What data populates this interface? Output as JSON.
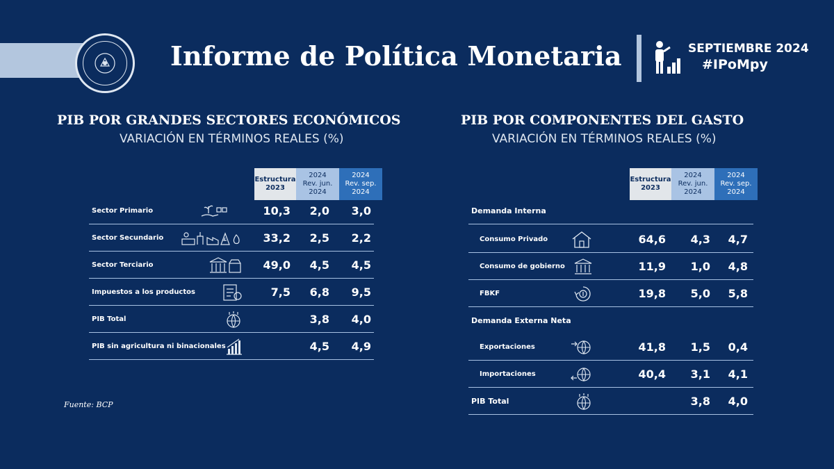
{
  "header": {
    "title": "Informe de Política Monetaria",
    "date": "SEPTIEMBRE 2024",
    "hashtag": "#IPoMpy",
    "logo_icon": "bcp-seal-icon",
    "person_icon": "person-chart-icon"
  },
  "left": {
    "title": "PIB POR GRANDES SECTORES ECONÓMICOS",
    "subtitle": "VARIACIÓN EN TÉRMINOS REALES (%)",
    "columns": [
      {
        "line1": "Estructura",
        "line2": "2023",
        "line3": ""
      },
      {
        "line1": "2024",
        "line2": "Rev. jun.",
        "line3": "2024"
      },
      {
        "line1": "2024",
        "line2": "Rev. sep.",
        "line3": "2024"
      }
    ],
    "rows": [
      {
        "label": "Sector Primario",
        "icon": "plant-hand-icon",
        "v1": "10,3",
        "v2": "2,0",
        "v3": "3,0"
      },
      {
        "label": "Sector Secundario",
        "icon": "industry-icon",
        "v1": "33,2",
        "v2": "2,5",
        "v3": "2,2"
      },
      {
        "label": "Sector Terciario",
        "icon": "bank-store-icon",
        "v1": "49,0",
        "v2": "4,5",
        "v3": "4,5"
      },
      {
        "label": "Impuestos a los productos",
        "icon": "tax-document-icon",
        "v1": "7,5",
        "v2": "6,8",
        "v3": "9,5"
      },
      {
        "label": "PIB Total",
        "icon": "globe-growth-icon",
        "v1": "",
        "v2": "3,8",
        "v3": "4,0"
      },
      {
        "label": "PIB sin agricultura ni binacionales",
        "icon": "bar-chart-icon",
        "v1": "",
        "v2": "4,5",
        "v3": "4,9"
      }
    ],
    "source": "Fuente: BCP"
  },
  "right": {
    "title": "PIB POR COMPONENTES DEL GASTO",
    "subtitle": "VARIACIÓN EN TÉRMINOS REALES (%)",
    "columns": [
      {
        "line1": "Estructura",
        "line2": "2023",
        "line3": ""
      },
      {
        "line1": "2024",
        "line2": "Rev. jun.",
        "line3": "2024"
      },
      {
        "line1": "2024",
        "line2": "Rev. sep.",
        "line3": "2024"
      }
    ],
    "group1": "Demanda Interna",
    "rows1": [
      {
        "label": "Consumo Privado",
        "icon": "house-icon",
        "v1": "64,6",
        "v2": "4,3",
        "v3": "4,7"
      },
      {
        "label": "Consumo de gobierno",
        "icon": "government-building-icon",
        "v1": "11,9",
        "v2": "1,0",
        "v3": "4,8"
      },
      {
        "label": "FBKF",
        "icon": "investment-cycle-icon",
        "v1": "19,8",
        "v2": "5,0",
        "v3": "5,8"
      }
    ],
    "group2": "Demanda Externa Neta",
    "rows2": [
      {
        "label": "Exportaciones",
        "icon": "export-globe-icon",
        "v1": "41,8",
        "v2": "1,5",
        "v3": "0,4"
      },
      {
        "label": "Importaciones",
        "icon": "import-globe-icon",
        "v1": "40,4",
        "v2": "3,1",
        "v3": "4,1"
      }
    ],
    "total": {
      "label": "PIB Total",
      "icon": "globe-growth-icon",
      "v1": "",
      "v2": "3,8",
      "v3": "4,0"
    }
  }
}
